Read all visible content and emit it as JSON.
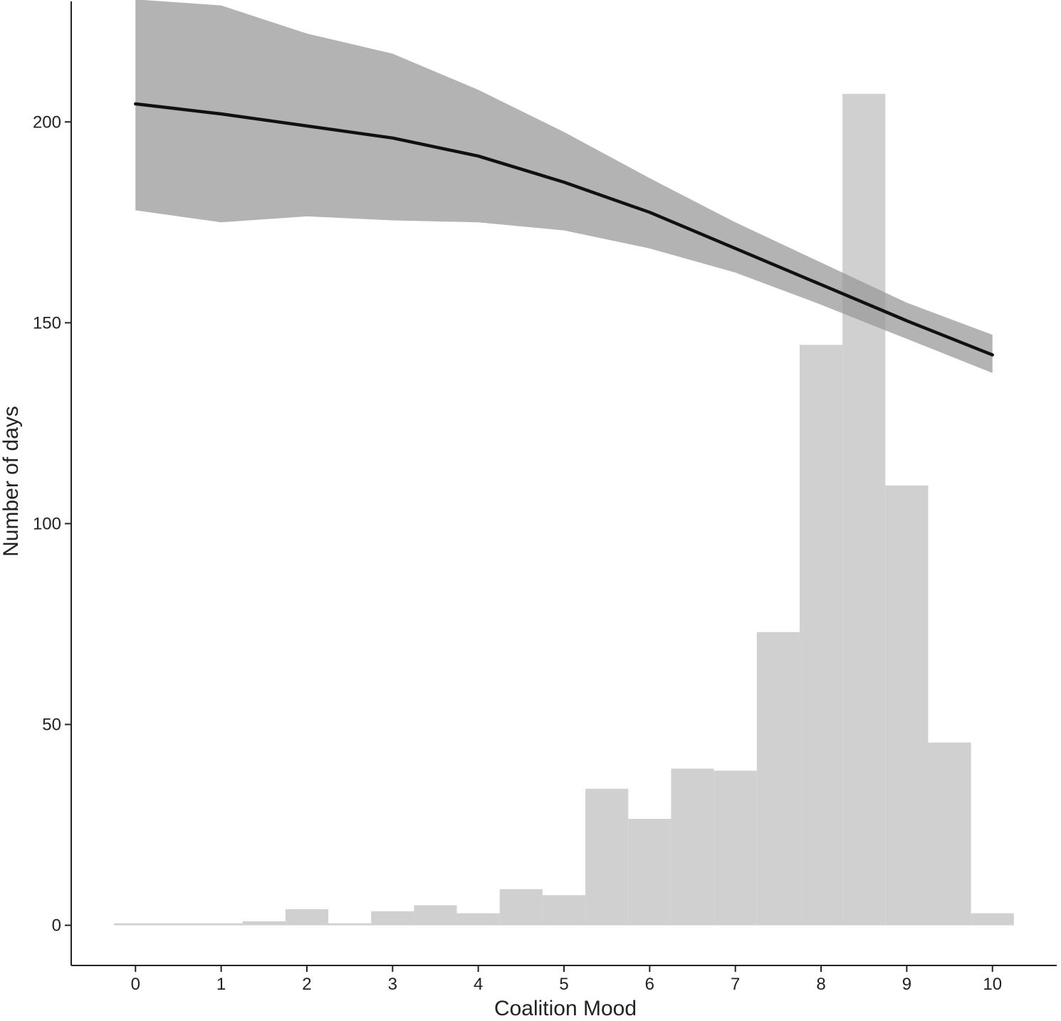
{
  "chart_data": {
    "type": "bar",
    "title": "",
    "xlabel": "Coalition Mood",
    "ylabel": "Number of days",
    "xlim": [
      -0.75,
      10.75
    ],
    "ylim": [
      -10,
      230
    ],
    "x_ticks": [
      0,
      1,
      2,
      3,
      4,
      5,
      6,
      7,
      8,
      9,
      10
    ],
    "x_tick_labels": [
      "0",
      "1",
      "2",
      "3",
      "4",
      "5",
      "6",
      "7",
      "8",
      "9",
      "10"
    ],
    "y_ticks": [
      0,
      50,
      100,
      150,
      200
    ],
    "y_tick_labels": [
      "0",
      "50",
      "100",
      "150",
      "200"
    ],
    "grid": false,
    "histogram": {
      "bin_width": 0.5,
      "bin_starts": [
        -0.25,
        0.25,
        0.75,
        1.25,
        1.75,
        2.25,
        2.75,
        3.25,
        3.75,
        4.25,
        4.75,
        5.25,
        5.75,
        6.25,
        6.75,
        7.25,
        7.75,
        8.25,
        8.75,
        9.25,
        9.75
      ],
      "values": [
        0.5,
        0.5,
        0.5,
        1,
        4,
        0.5,
        3.5,
        5,
        3,
        9,
        7.5,
        34,
        26.5,
        39,
        38.5,
        73,
        144.5,
        207,
        109.5,
        45.5,
        3
      ],
      "color": "#d0d0d0"
    },
    "fit": {
      "x": [
        0,
        1,
        2,
        3,
        4,
        5,
        6,
        7,
        8,
        9,
        10
      ],
      "y": [
        204.5,
        202,
        199,
        196,
        191.5,
        185,
        177.5,
        168.5,
        159.5,
        150.5,
        142
      ],
      "lower": [
        178,
        175,
        176.5,
        175.5,
        175,
        173,
        168.5,
        162.5,
        154.5,
        146,
        137.5
      ],
      "upper": [
        230.5,
        229,
        222,
        217,
        208,
        197.5,
        186,
        175,
        165,
        155,
        147
      ],
      "line_color": "#111111",
      "band_color": "#999999"
    }
  }
}
